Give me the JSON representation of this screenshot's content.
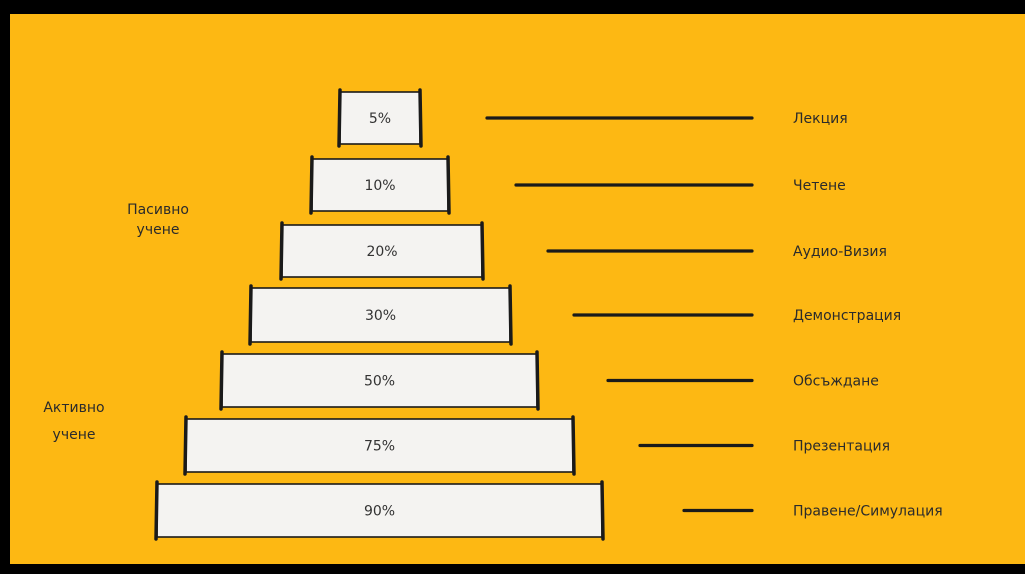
{
  "colors": {
    "background": "#FDB813",
    "frame": "#000000",
    "box_fill": "#F4F3F1",
    "ink": "#1a1a1a"
  },
  "groups": [
    {
      "lines": [
        "Пасивно",
        "учене"
      ]
    },
    {
      "lines": [
        "Активно",
        "учене"
      ]
    }
  ],
  "pyramid": [
    {
      "percent": "5%",
      "method": "Лекция"
    },
    {
      "percent": "10%",
      "method": "Четене"
    },
    {
      "percent": "20%",
      "method": "Аудио-Визия"
    },
    {
      "percent": "30%",
      "method": "Демонстрация"
    },
    {
      "percent": "50%",
      "method": "Обсъждане"
    },
    {
      "percent": "75%",
      "method": "Презентация"
    },
    {
      "percent": "90%",
      "method": "Правене/Симулация"
    }
  ]
}
